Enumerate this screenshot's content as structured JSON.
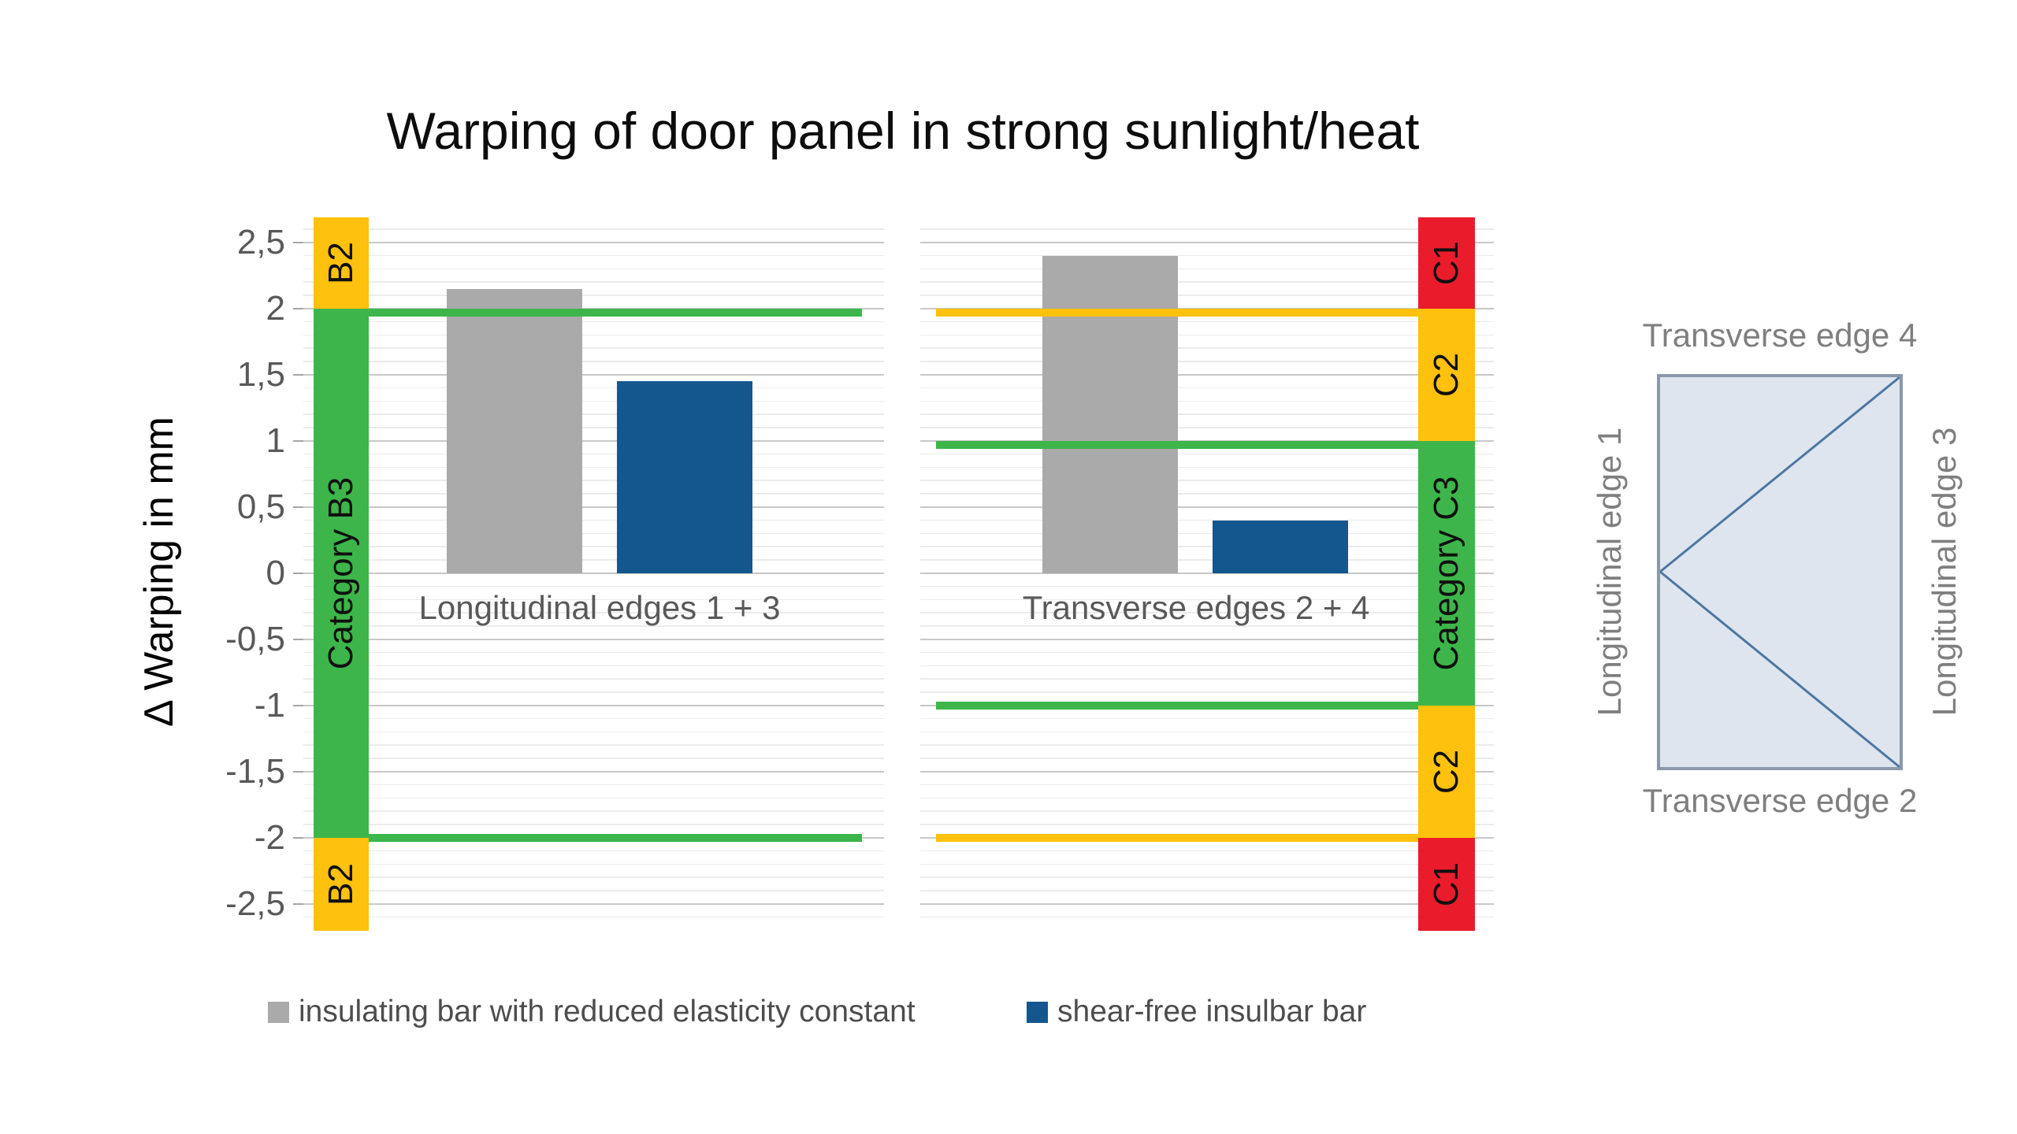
{
  "title": "Warping of door panel in strong sunlight/heat",
  "y_axis": {
    "label": "Δ Warping in mm",
    "tick_labels": [
      "2,5",
      "2",
      "1,5",
      "1",
      "0,5",
      "0",
      "-0,5",
      "-1",
      "-1,5",
      "-2",
      "-2,5"
    ],
    "tick_values": [
      2.5,
      2,
      1.5,
      1,
      0.5,
      0,
      -0.5,
      -1,
      -1.5,
      -2,
      -2.5
    ]
  },
  "legend": [
    {
      "label": "insulating bar with reduced elasticity constant",
      "color": "#aaaaaa"
    },
    {
      "label": "shear-free insulbar bar",
      "color": "#14578f"
    }
  ],
  "chart_data": {
    "type": "bar",
    "title": "Warping of door panel in strong sunlight/heat",
    "ylabel": "Δ Warping in mm",
    "ylim": [
      -2.7,
      2.7
    ],
    "ytick_step": 0.5,
    "minor_grid_step": 0.1,
    "decimal_separator": ",",
    "grid": true,
    "legend_position": "bottom",
    "categories": [
      "Longitudinal edges 1 + 3",
      "Transverse edges 2 + 4"
    ],
    "series": [
      {
        "name": "insulating bar with reduced elasticity constant",
        "color": "#aaaaaa",
        "values": [
          2.15,
          2.4
        ]
      },
      {
        "name": "shear-free insulbar bar",
        "color": "#14578f",
        "values": [
          1.45,
          0.4
        ]
      }
    ],
    "panels": [
      {
        "category": "Longitudinal edges 1 + 3",
        "band_side": "left",
        "bands": [
          {
            "label": "B2",
            "from": 2.0,
            "to": 2.7,
            "color": "#fdc10e"
          },
          {
            "label": "Category B3",
            "from": -2.0,
            "to": 2.0,
            "color": "#3db54a"
          },
          {
            "label": "B2",
            "from": -2.7,
            "to": -2.0,
            "color": "#fdc10e"
          }
        ],
        "threshold_lines": [
          {
            "value": 2.0,
            "color": "#3db54a"
          },
          {
            "value": -2.0,
            "color": "#3db54a"
          }
        ]
      },
      {
        "category": "Transverse edges 2 + 4",
        "band_side": "right",
        "bands": [
          {
            "label": "C1",
            "from": 2.0,
            "to": 2.7,
            "color": "#ea1c2c"
          },
          {
            "label": "C2",
            "from": 1.0,
            "to": 2.0,
            "color": "#fdc10e"
          },
          {
            "label": "Category C3",
            "from": -1.0,
            "to": 1.0,
            "color": "#3db54a"
          },
          {
            "label": "C2",
            "from": -2.0,
            "to": -1.0,
            "color": "#fdc10e"
          },
          {
            "label": "C1",
            "from": -2.7,
            "to": -2.0,
            "color": "#ea1c2c"
          }
        ],
        "threshold_lines": [
          {
            "value": 2.0,
            "color": "#fdc10e"
          },
          {
            "value": 1.0,
            "color": "#3db54a"
          },
          {
            "value": -1.0,
            "color": "#3db54a"
          },
          {
            "value": -2.0,
            "color": "#fdc10e"
          }
        ]
      }
    ]
  },
  "door_diagram": {
    "top": "Transverse edge 4",
    "bottom": "Transverse edge 2",
    "left": "Longitudinal edge 1",
    "right": "Longitudinal edge 3"
  },
  "colors": {
    "green": "#3db54a",
    "yellow": "#fdc10e",
    "red": "#ea1c2c",
    "bar_gray": "#aaaaaa",
    "bar_blue": "#14578f",
    "grid_major": "#c8c8c8",
    "grid_minor": "#ebebeb",
    "tick_text": "#595959",
    "door_fill": "#dee5ee",
    "door_border": "#8a98a8",
    "door_line": "#4e76a0"
  }
}
